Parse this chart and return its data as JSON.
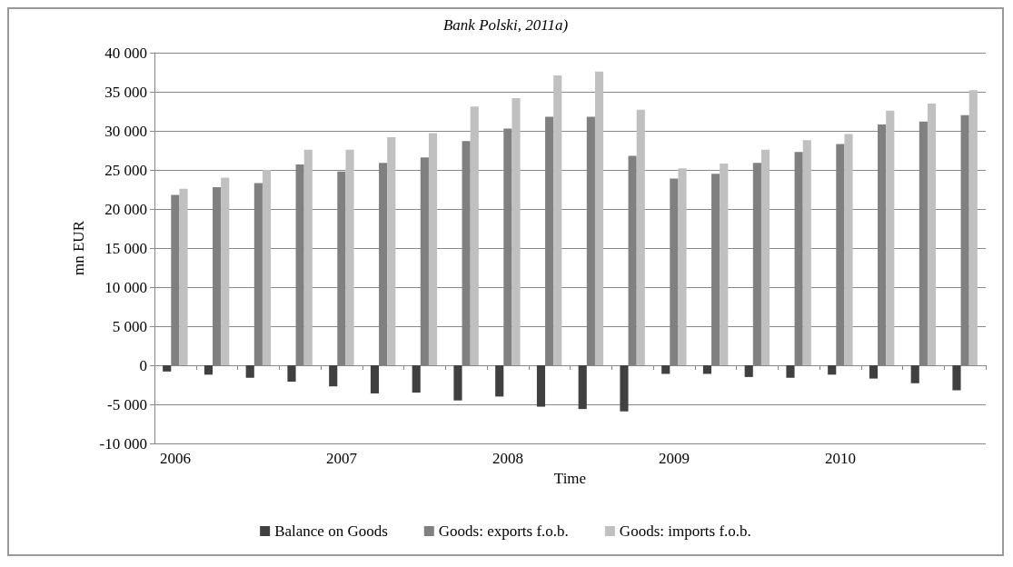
{
  "chart_data": {
    "type": "bar",
    "annotations": [
      "Bank Polski, 2011a)"
    ],
    "xlabel": "Time",
    "ylabel": "mn EUR",
    "categories": [
      "2006",
      null,
      null,
      null,
      "2007",
      null,
      null,
      null,
      "2008",
      null,
      null,
      null,
      "2009",
      null,
      null,
      null,
      "2010",
      null,
      null,
      null
    ],
    "series": [
      {
        "name": "Balance on Goods",
        "color": "#404040",
        "values": [
          -800,
          -1200,
          -1600,
          -2100,
          -2700,
          -3600,
          -3500,
          -4500,
          -4000,
          -5300,
          -5600,
          -5900,
          -1100,
          -1100,
          -1500,
          -1600,
          -1200,
          -1700,
          -2300,
          -3200
        ]
      },
      {
        "name": "Goods: exports f.o.b.",
        "color": "#808080",
        "values": [
          21800,
          22800,
          23300,
          25700,
          24800,
          25900,
          26600,
          28700,
          30300,
          31800,
          31800,
          26800,
          23900,
          24500,
          25900,
          27300,
          28300,
          30800,
          31200,
          32000
        ]
      },
      {
        "name": "Goods: imports f.o.b.",
        "color": "#c0c0c0",
        "values": [
          22600,
          24000,
          25000,
          27600,
          27600,
          29200,
          29700,
          33100,
          34200,
          37100,
          37600,
          32700,
          25200,
          25800,
          27600,
          28800,
          29600,
          32600,
          33500,
          35200
        ]
      }
    ],
    "ylim": [
      -10000,
      40000
    ],
    "yticks": [
      {
        "value": -10000,
        "label": "-10 000"
      },
      {
        "value": -5000,
        "label": "-5 000"
      },
      0,
      {
        "value": 5000,
        "label": "5 000"
      },
      {
        "value": 10000,
        "label": "10 000"
      },
      {
        "value": 15000,
        "label": "15 000"
      },
      {
        "value": 20000,
        "label": "20 000"
      },
      {
        "value": 25000,
        "label": "25 000"
      },
      {
        "value": 30000,
        "label": "30 000"
      },
      {
        "value": 35000,
        "label": "35 000"
      },
      {
        "value": 40000,
        "label": "40 000"
      }
    ],
    "grid": "y",
    "legend": "bottom"
  }
}
